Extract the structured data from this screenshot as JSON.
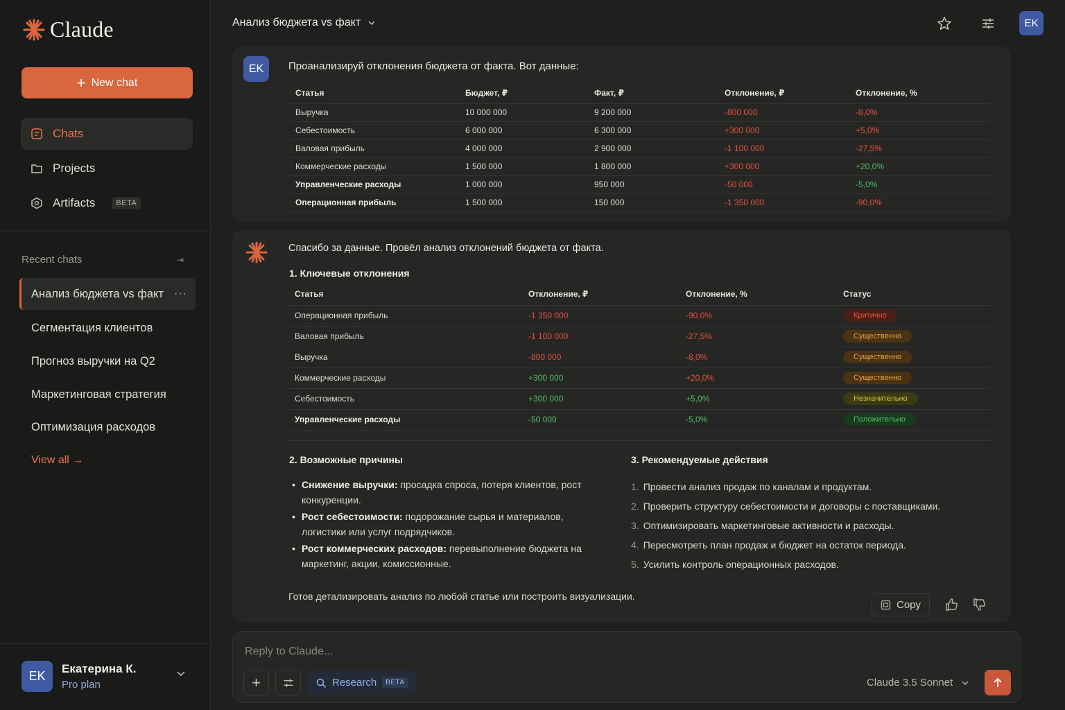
{
  "sidebar": {
    "logo_text": "Claude",
    "new_chat_label": "New chat",
    "nav": [
      {
        "label": "Chats",
        "icon": "chat-icon"
      },
      {
        "label": "Projects",
        "icon": "folder-icon"
      },
      {
        "label": "Artifacts",
        "icon": "artifact-icon",
        "badge": "BETA"
      }
    ],
    "recent_label": "Recent chats",
    "recent_chats": [
      "Анализ бюджета vs факт",
      "Сегментация клиентов",
      "Прогноз выручки на Q2",
      "Маркетинговая стратегия",
      "Оптимизация расходов"
    ],
    "more_label": "···",
    "view_all": "View all →",
    "user": {
      "initials": "EK",
      "name": "Екатерина К.",
      "plan": "Pro plan"
    }
  },
  "header": {
    "title": "Анализ бюджета vs факт",
    "avatar": "EK"
  },
  "user_message": {
    "avatar": "EK",
    "text": "Проанализируй отклонения бюджета от факта. Вот данные:",
    "table": {
      "headers": [
        "Статья",
        "Бюджет, ₽",
        "Факт, ₽",
        "Отклонение, ₽",
        "Отклонение, %"
      ],
      "rows": [
        [
          "Выручка",
          "10 000 000",
          "9 200 000",
          "-800 000",
          "-8,0%"
        ],
        [
          "Себестоимость",
          "6 000 000",
          "6 300 000",
          "+300 000",
          "+5,0%"
        ],
        [
          "Валовая прибыль",
          "4 000 000",
          "2 900 000",
          "-1 100 000",
          "-27,5%"
        ],
        [
          "Коммерческие расходы",
          "1 500 000",
          "1 800 000",
          "+300 000",
          "+20,0%"
        ],
        [
          "Управленческие расходы",
          "1 000 000",
          "950 000",
          "-50 000",
          "-5,0%"
        ],
        [
          "Операционная прибыль",
          "1 500 000",
          "150 000",
          "-1 350 000",
          "-90,0%"
        ]
      ]
    }
  },
  "assistant_message": {
    "intro": "Спасибо за данные. Провёл анализ отклонений бюджета от факта.",
    "section1": "1. Ключевые отклонения",
    "table": {
      "headers": [
        "Статья",
        "Отклонение, ₽",
        "Отклонение, %",
        "Статус"
      ],
      "rows": [
        [
          "Операционная прибыль",
          "-1 350 000",
          "-90,0%",
          "Критично"
        ],
        [
          "Валовая прибыль",
          "-1 100 000",
          "-27,5%",
          "Существенно"
        ],
        [
          "Выручка",
          "-800 000",
          "-8,0%",
          "Существенно"
        ],
        [
          "Коммерческие расходы",
          "+300 000",
          "+20,0%",
          "Существенно"
        ],
        [
          "Себестоимость",
          "+300 000",
          "+5,0%",
          "Незначительно"
        ],
        [
          "Управленческие расходы",
          "-50 000",
          "-5,0%",
          "Положительно"
        ]
      ]
    },
    "section2": "2. Возможные причины",
    "reasons": [
      {
        "bold": "Снижение выручки:",
        "text": " просадка спроса, потеря клиентов, рост конкуренции."
      },
      {
        "bold": "Рост себестоимости:",
        "text": " подорожание сырья и материалов, логистики или услуг подрядчиков."
      },
      {
        "bold": "Рост коммерческих расходов:",
        "text": " перевыполнение бюджета на маркетинг, акции, комиссионные."
      }
    ],
    "section3": "3. Рекомендуемые действия",
    "actions": [
      "Провести анализ продаж по каналам и продуктам.",
      "Проверить структуру себестоимости и договоры с поставщиками.",
      "Оптимизировать маркетинговые активности и расходы.",
      "Пересмотреть план продаж и бюджет на остаток периода.",
      "Усилить контроль операционных расходов."
    ],
    "closing": "Готов детализировать анализ по любой статье или построить визуализации.",
    "copy_label": "Copy"
  },
  "composer": {
    "placeholder": "Reply to Claude...",
    "research_label": "Research",
    "research_badge": "BETA",
    "model": "Claude 3.5 Sonnet"
  },
  "colors": {
    "accent": "#d9663f",
    "negative": "#e2523b",
    "positive": "#4fbf63",
    "avatar": "#3f5aa3"
  }
}
